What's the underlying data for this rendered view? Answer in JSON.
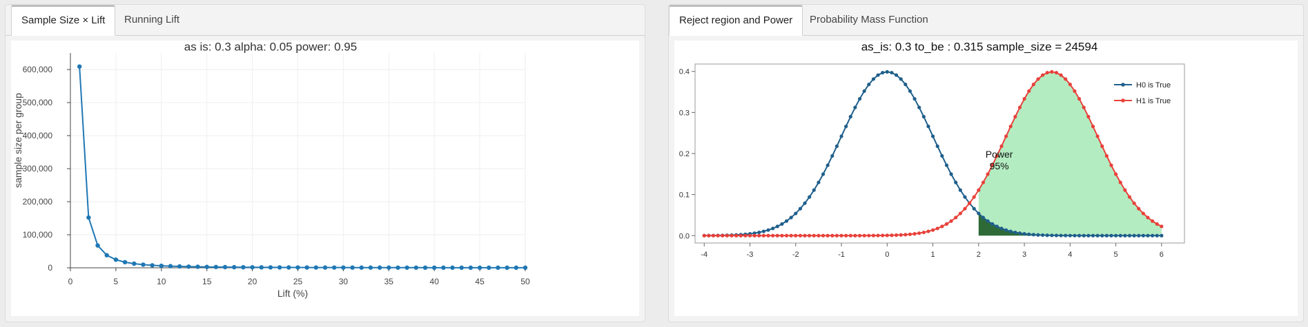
{
  "left_panel": {
    "tabs": [
      {
        "label": "Sample Size × Lift",
        "active": true
      },
      {
        "label": "Running Lift",
        "active": false
      }
    ]
  },
  "right_panel": {
    "tabs": [
      {
        "label": "Reject region and Power",
        "active": true
      },
      {
        "label": "Probability Mass Function",
        "active": false
      }
    ]
  },
  "colors": {
    "left_line": "#1f77b4",
    "h0": "#1f5f8b",
    "h1": "#e8413a",
    "power_fill": "#b3ecc1",
    "alpha_fill": "#2d6a37"
  },
  "chart_data": [
    {
      "type": "line",
      "title": "as is: 0.3 alpha: 0.05 power: 0.95",
      "xlabel": "Lift (%)",
      "ylabel": "sample size per group",
      "xlim": [
        0,
        50
      ],
      "ylim": [
        0,
        650000
      ],
      "xticks": [
        0,
        5,
        10,
        15,
        20,
        25,
        30,
        35,
        40,
        45,
        50
      ],
      "yticks": [
        0,
        100000,
        200000,
        300000,
        400000,
        500000,
        600000
      ],
      "ytick_labels": [
        "0",
        "100,000",
        "200,000",
        "300,000",
        "400,000",
        "500,000",
        "600,000"
      ],
      "grid": true,
      "series": [
        {
          "x": [
            1,
            2,
            3,
            4,
            5,
            6,
            7,
            8,
            9,
            10,
            11,
            12,
            13,
            14,
            15,
            16,
            17,
            18,
            19,
            20,
            21,
            22,
            23,
            24,
            25,
            26,
            27,
            28,
            29,
            30,
            31,
            32,
            33,
            34,
            35,
            36,
            37,
            38,
            39,
            40,
            41,
            42,
            43,
            44,
            45,
            46,
            47,
            48,
            49,
            50
          ],
          "y": [
            609000,
            152000,
            67500,
            38000,
            24600,
            17000,
            12500,
            9500,
            7500,
            6100,
            5000,
            4200,
            3600,
            3100,
            2700,
            2400,
            2100,
            1880,
            1690,
            1520,
            1380,
            1260,
            1150,
            1050,
            970,
            900,
            830,
            770,
            720,
            670,
            630,
            590,
            560,
            530,
            500,
            470,
            450,
            430,
            410,
            390,
            370,
            350,
            340,
            320,
            310,
            300,
            290,
            280,
            270,
            260
          ]
        }
      ]
    },
    {
      "type": "line",
      "title": "as_is: 0.3 to_be : 0.315 sample_size = 24594",
      "xlim": [
        -4.2,
        6.5
      ],
      "ylim": [
        -0.018,
        0.418
      ],
      "xticks": [
        -4,
        -3,
        -2,
        -1,
        0,
        1,
        2,
        3,
        4,
        5,
        6
      ],
      "yticks": [
        0.0,
        0.1,
        0.2,
        0.3,
        0.4
      ],
      "ytick_labels": [
        "0.0",
        "0.1",
        "0.2",
        "0.3",
        "0.4"
      ],
      "legend_position": "top-right",
      "annotation": {
        "line1": "Power",
        "line2": "95%",
        "x": 2.45,
        "y": 0.19
      },
      "series": [
        {
          "name": "H0 is True",
          "mean": 0,
          "sd": 1,
          "color_key": "h0"
        },
        {
          "name": "H1 is True",
          "mean": 3.6,
          "sd": 1,
          "color_key": "h1"
        }
      ],
      "critical_value": 2.0,
      "x_range": [
        -4,
        6
      ],
      "points": 101
    }
  ]
}
